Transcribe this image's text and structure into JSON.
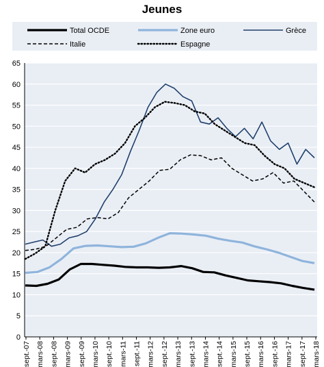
{
  "chart_data": {
    "type": "line",
    "title": "Jeunes",
    "xlabel": "",
    "ylabel": "",
    "ylim": [
      0,
      65
    ],
    "y_ticks": [
      0,
      5,
      10,
      15,
      20,
      25,
      30,
      35,
      40,
      45,
      50,
      55,
      60,
      65
    ],
    "x_tick_labels": [
      "sept.-07",
      "mars-08",
      "sept.-08",
      "mars-09",
      "sept.-09",
      "mars-10",
      "sept.-10",
      "mars-11",
      "sept.-11",
      "mars-12",
      "sept.-12",
      "mars-13",
      "sept.-13",
      "mars-14",
      "sept.-14",
      "mars-15",
      "sept.-15",
      "mars-16",
      "sept.-16",
      "mars-17",
      "sept.-17",
      "mars-18"
    ],
    "grid": "horizontal",
    "legend_position": "top",
    "background": "#e9eef5",
    "series": [
      {
        "name": "Total OCDE",
        "color": "#000000",
        "style": "solid-thick",
        "values": [
          12.2,
          12.1,
          12.6,
          13.6,
          16.0,
          17.3,
          17.3,
          17.1,
          16.9,
          16.6,
          16.5,
          16.5,
          16.4,
          16.5,
          16.8,
          16.3,
          15.4,
          15.3,
          14.6,
          14.0,
          13.4,
          13.2,
          13.0,
          12.7,
          12.1,
          11.6,
          11.2
        ]
      },
      {
        "name": "Zone euro",
        "color": "#8fb4dc",
        "style": "solid-thick",
        "values": [
          15.2,
          15.4,
          16.5,
          18.5,
          21.0,
          21.6,
          21.7,
          21.5,
          21.3,
          21.4,
          22.2,
          23.5,
          24.6,
          24.5,
          24.3,
          24.0,
          23.3,
          22.8,
          22.4,
          21.5,
          20.8,
          20.0,
          19.0,
          18.0,
          17.5
        ]
      },
      {
        "name": "Grèce",
        "color": "#1f3f6b",
        "style": "solid",
        "values": [
          22.0,
          22.5,
          23.0,
          21.5,
          22.0,
          23.5,
          24.0,
          25.0,
          28.0,
          32.0,
          35.0,
          38.5,
          44.0,
          49.0,
          54.5,
          58.0,
          60.0,
          59.0,
          57.0,
          56.0,
          51.0,
          50.5,
          52.0,
          49.5,
          47.5,
          49.5,
          47.0,
          51.0,
          46.5,
          44.5,
          46.0,
          41.0,
          44.5,
          42.5
        ]
      },
      {
        "name": "Italie",
        "color": "#000000",
        "style": "dashed",
        "values": [
          20.5,
          20.8,
          21.5,
          23.5,
          25.5,
          26.0,
          28.0,
          28.3,
          28.0,
          29.5,
          33.0,
          35.0,
          37.0,
          39.5,
          39.8,
          42.0,
          43.2,
          43.0,
          42.0,
          42.5,
          40.0,
          38.5,
          37.0,
          37.5,
          39.0,
          36.5,
          37.0,
          34.5,
          32.0
        ]
      },
      {
        "name": "Espagne",
        "color": "#000000",
        "style": "dotted",
        "values": [
          18.5,
          19.8,
          21.5,
          30.0,
          37.0,
          40.0,
          39.0,
          41.0,
          42.0,
          43.5,
          46.0,
          50.0,
          52.0,
          54.5,
          55.8,
          55.5,
          55.0,
          53.5,
          53.0,
          50.5,
          49.0,
          47.5,
          46.0,
          45.5,
          43.0,
          41.0,
          40.0,
          37.5,
          36.5,
          35.5
        ]
      }
    ]
  }
}
